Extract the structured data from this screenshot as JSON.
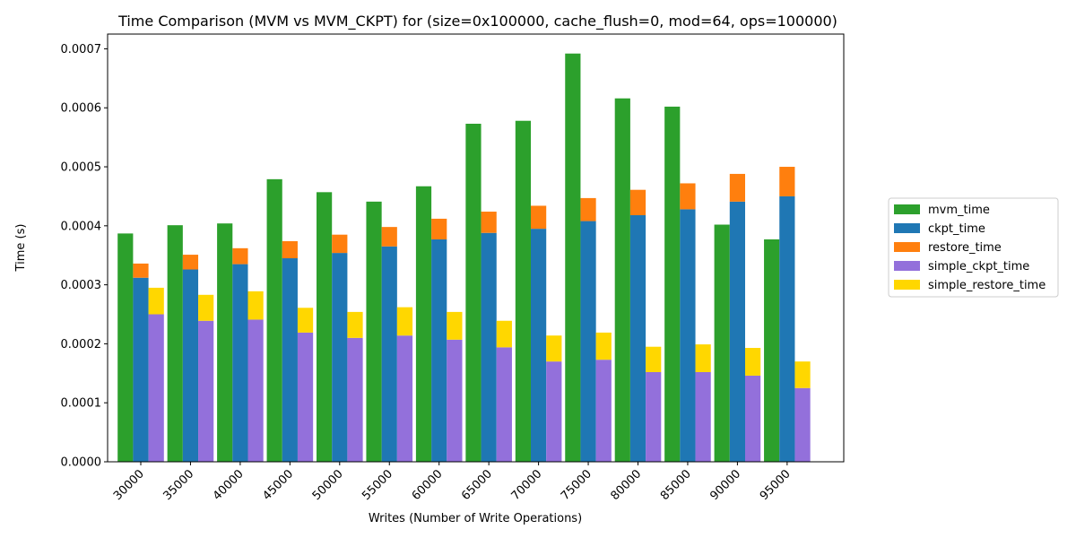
{
  "chart_data": {
    "type": "bar",
    "title": "Time Comparison (MVM vs MVM_CKPT) for (size=0x100000, cache_flush=0, mod=64, ops=100000)",
    "xlabel": "Writes (Number of Write Operations)",
    "ylabel": "Time (s)",
    "ylim": [
      0,
      0.000725
    ],
    "yticks": [
      "0.0000",
      "0.0001",
      "0.0002",
      "0.0003",
      "0.0004",
      "0.0005",
      "0.0006",
      "0.0007"
    ],
    "categories": [
      "30000",
      "35000",
      "40000",
      "45000",
      "50000",
      "55000",
      "60000",
      "65000",
      "70000",
      "75000",
      "80000",
      "85000",
      "90000",
      "95000"
    ],
    "legend_position": "right",
    "series": [
      {
        "name": "mvm_time",
        "color": "#2ca02c",
        "values": [
          0.000387,
          0.000401,
          0.000404,
          0.000479,
          0.000457,
          0.000441,
          0.000467,
          0.000573,
          0.000578,
          0.000692,
          0.000616,
          0.000602,
          0.000402,
          0.000377
        ]
      },
      {
        "name": "ckpt_time",
        "color": "#1f77b4",
        "stack": "ckpt",
        "values": [
          0.000312,
          0.000326,
          0.000335,
          0.000345,
          0.000354,
          0.000365,
          0.000377,
          0.000388,
          0.000395,
          0.000408,
          0.000418,
          0.000428,
          0.000441,
          0.00045
        ]
      },
      {
        "name": "restore_time",
        "color": "#ff7f0e",
        "stack": "ckpt",
        "values": [
          2.4e-05,
          2.5e-05,
          2.7e-05,
          2.9e-05,
          3.1e-05,
          3.3e-05,
          3.5e-05,
          3.6e-05,
          3.9e-05,
          3.9e-05,
          4.3e-05,
          4.4e-05,
          4.7e-05,
          5e-05
        ]
      },
      {
        "name": "simple_ckpt_time",
        "color": "#9370db",
        "stack": "simple",
        "values": [
          0.00025,
          0.000239,
          0.000241,
          0.000219,
          0.00021,
          0.000214,
          0.000207,
          0.000194,
          0.00017,
          0.000173,
          0.000152,
          0.000152,
          0.000146,
          0.000125
        ]
      },
      {
        "name": "simple_restore_time",
        "color": "#ffd700",
        "stack": "simple",
        "values": [
          4.5e-05,
          4.4e-05,
          4.8e-05,
          4.2e-05,
          4.4e-05,
          4.8e-05,
          4.7e-05,
          4.5e-05,
          4.4e-05,
          4.6e-05,
          4.3e-05,
          4.7e-05,
          4.7e-05,
          4.5e-05
        ]
      }
    ]
  }
}
